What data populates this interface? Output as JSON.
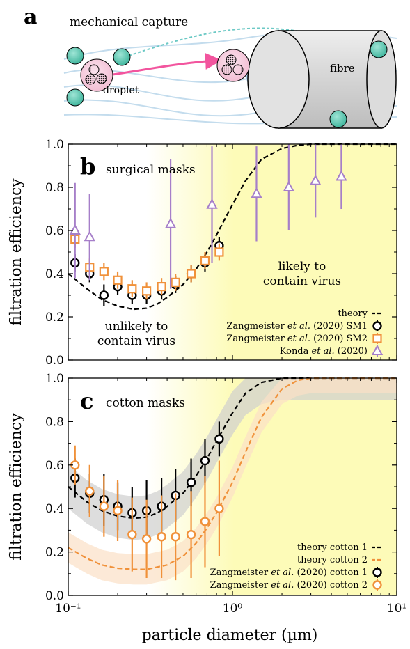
{
  "panel_a": {
    "letter": "a",
    "title": "mechanical capture",
    "droplet_label": "droplet",
    "fibre_label": "fibre"
  },
  "panel_b": {
    "letter": "b",
    "title": "surgical masks",
    "likely_text_1": "likely to",
    "likely_text_2": "contain virus",
    "unlikely_text_1": "unlikely to",
    "unlikely_text_2": "contain virus",
    "legend": [
      {
        "pre": "theory",
        "italic": "",
        "post": ""
      },
      {
        "pre": "Zangmeister ",
        "italic": "et al.",
        "post": " (2020) SM1"
      },
      {
        "pre": "Zangmeister ",
        "italic": "et al.",
        "post": " (2020) SM2"
      },
      {
        "pre": "Konda ",
        "italic": "et al.",
        "post": " (2020)"
      }
    ]
  },
  "panel_c": {
    "letter": "c",
    "title": "cotton masks",
    "legend": [
      {
        "pre": "theory cotton 1",
        "italic": "",
        "post": ""
      },
      {
        "pre": "theory cotton 2",
        "italic": "",
        "post": ""
      },
      {
        "pre": "Zangmeister ",
        "italic": "et al.",
        "post": " (2020) cotton 1"
      },
      {
        "pre": "Zangmeister ",
        "italic": "et al.",
        "post": " (2020) cotton 2"
      }
    ]
  },
  "colors": {
    "black": "#000000",
    "orange": "#f0913a",
    "purple": "#a67fc9",
    "yellow": "#fdfbb8",
    "gray_band": "#cfcfcf",
    "orange_band": "#fbe0c6",
    "pink_arrow": "#f2559e",
    "teal": "#4fc4ad"
  },
  "chart_data": [
    {
      "type": "scatter",
      "panel": "b",
      "ylabel": "filtration efficiency",
      "xlabel": "",
      "xscale": "log",
      "xlim": [
        0.1,
        10
      ],
      "ylim": [
        0.0,
        1.0
      ],
      "xticklabels": [
        "10⁻¹",
        "10⁰",
        "10¹"
      ],
      "yticklabels": [
        "0.0",
        "0.2",
        "0.4",
        "0.6",
        "0.8",
        "1.0"
      ],
      "series": [
        {
          "name": "theory",
          "kind": "line",
          "x": [
            0.1,
            0.13,
            0.16,
            0.2,
            0.25,
            0.3,
            0.35,
            0.4,
            0.5,
            0.6,
            0.7,
            0.8,
            1.0,
            1.2,
            1.5,
            2.0,
            2.5,
            3.0,
            4.0,
            5.0,
            7.0,
            10.0
          ],
          "y": [
            0.4,
            0.33,
            0.28,
            0.25,
            0.235,
            0.24,
            0.26,
            0.29,
            0.35,
            0.42,
            0.5,
            0.58,
            0.72,
            0.83,
            0.93,
            0.98,
            0.995,
            1.0,
            1.0,
            1.0,
            1.0,
            1.0
          ]
        },
        {
          "name": "Zangmeister et al. (2020) SM1",
          "kind": "points",
          "x": [
            0.11,
            0.135,
            0.165,
            0.2,
            0.245,
            0.3,
            0.37,
            0.45,
            0.56,
            0.68,
            0.83
          ],
          "y": [
            0.45,
            0.4,
            0.3,
            0.34,
            0.3,
            0.3,
            0.32,
            0.35,
            0.4,
            0.45,
            0.53
          ],
          "err": [
            0.04,
            0.04,
            0.05,
            0.04,
            0.04,
            0.04,
            0.04,
            0.04,
            0.04,
            0.04,
            0.04
          ]
        },
        {
          "name": "Zangmeister et al. (2020) SM2",
          "kind": "points",
          "x": [
            0.11,
            0.135,
            0.165,
            0.2,
            0.245,
            0.3,
            0.37,
            0.45,
            0.56,
            0.68,
            0.83
          ],
          "y": [
            0.56,
            0.43,
            0.41,
            0.37,
            0.33,
            0.32,
            0.34,
            0.36,
            0.4,
            0.46,
            0.5
          ],
          "err": [
            0.04,
            0.04,
            0.04,
            0.04,
            0.04,
            0.04,
            0.04,
            0.04,
            0.04,
            0.04,
            0.04
          ]
        },
        {
          "name": "Konda et al. (2020)",
          "kind": "points",
          "x": [
            0.11,
            0.135,
            0.42,
            0.75,
            1.4,
            2.2,
            3.2,
            4.6
          ],
          "y": [
            0.6,
            0.57,
            0.63,
            0.72,
            0.77,
            0.8,
            0.83,
            0.85
          ],
          "err": [
            0.22,
            0.2,
            0.3,
            0.27,
            0.22,
            0.2,
            0.17,
            0.15
          ]
        }
      ],
      "annotations": [
        "likely to contain virus",
        "unlikely to contain virus"
      ]
    },
    {
      "type": "scatter",
      "panel": "c",
      "ylabel": "filtration efficiency",
      "xlabel": "particle diameter (µm)",
      "xscale": "log",
      "xlim": [
        0.1,
        10
      ],
      "ylim": [
        0.0,
        1.0
      ],
      "xticklabels": [
        "10⁻¹",
        "10⁰",
        "10¹"
      ],
      "yticklabels": [
        "0.0",
        "0.2",
        "0.4",
        "0.6",
        "0.8",
        "1.0"
      ],
      "series": [
        {
          "name": "theory cotton 1",
          "kind": "line",
          "band": 0.1,
          "x": [
            0.1,
            0.13,
            0.16,
            0.2,
            0.25,
            0.3,
            0.35,
            0.4,
            0.5,
            0.6,
            0.7,
            0.8,
            1.0,
            1.2,
            1.5,
            2.0,
            2.5,
            3.0,
            4.0,
            10.0
          ],
          "y": [
            0.5,
            0.43,
            0.39,
            0.365,
            0.355,
            0.36,
            0.38,
            0.41,
            0.47,
            0.55,
            0.63,
            0.71,
            0.84,
            0.93,
            0.98,
            1.0,
            1.0,
            1.0,
            1.0,
            1.0
          ]
        },
        {
          "name": "theory cotton 2",
          "kind": "line",
          "band": 0.07,
          "x": [
            0.1,
            0.13,
            0.16,
            0.2,
            0.25,
            0.3,
            0.4,
            0.5,
            0.6,
            0.7,
            0.8,
            1.0,
            1.2,
            1.5,
            2.0,
            2.5,
            3.0,
            4.0,
            10.0
          ],
          "y": [
            0.22,
            0.17,
            0.14,
            0.125,
            0.12,
            0.12,
            0.14,
            0.18,
            0.24,
            0.31,
            0.38,
            0.52,
            0.66,
            0.82,
            0.95,
            0.99,
            1.0,
            1.0,
            1.0
          ]
        },
        {
          "name": "Zangmeister et al. (2020) cotton 1",
          "kind": "points",
          "x": [
            0.11,
            0.135,
            0.165,
            0.2,
            0.245,
            0.3,
            0.37,
            0.45,
            0.56,
            0.68,
            0.83
          ],
          "y": [
            0.54,
            0.47,
            0.44,
            0.41,
            0.38,
            0.39,
            0.41,
            0.46,
            0.52,
            0.62,
            0.72
          ],
          "err": [
            0.09,
            0.09,
            0.12,
            0.11,
            0.12,
            0.14,
            0.13,
            0.12,
            0.11,
            0.1,
            0.08
          ]
        },
        {
          "name": "Zangmeister et al. (2020) cotton 2",
          "kind": "points",
          "x": [
            0.11,
            0.135,
            0.165,
            0.2,
            0.245,
            0.3,
            0.37,
            0.45,
            0.56,
            0.68,
            0.83
          ],
          "y": [
            0.6,
            0.48,
            0.41,
            0.39,
            0.28,
            0.26,
            0.27,
            0.27,
            0.28,
            0.34,
            0.4
          ],
          "err": [
            0.09,
            0.12,
            0.14,
            0.14,
            0.17,
            0.18,
            0.19,
            0.2,
            0.2,
            0.21,
            0.22
          ]
        }
      ]
    }
  ]
}
